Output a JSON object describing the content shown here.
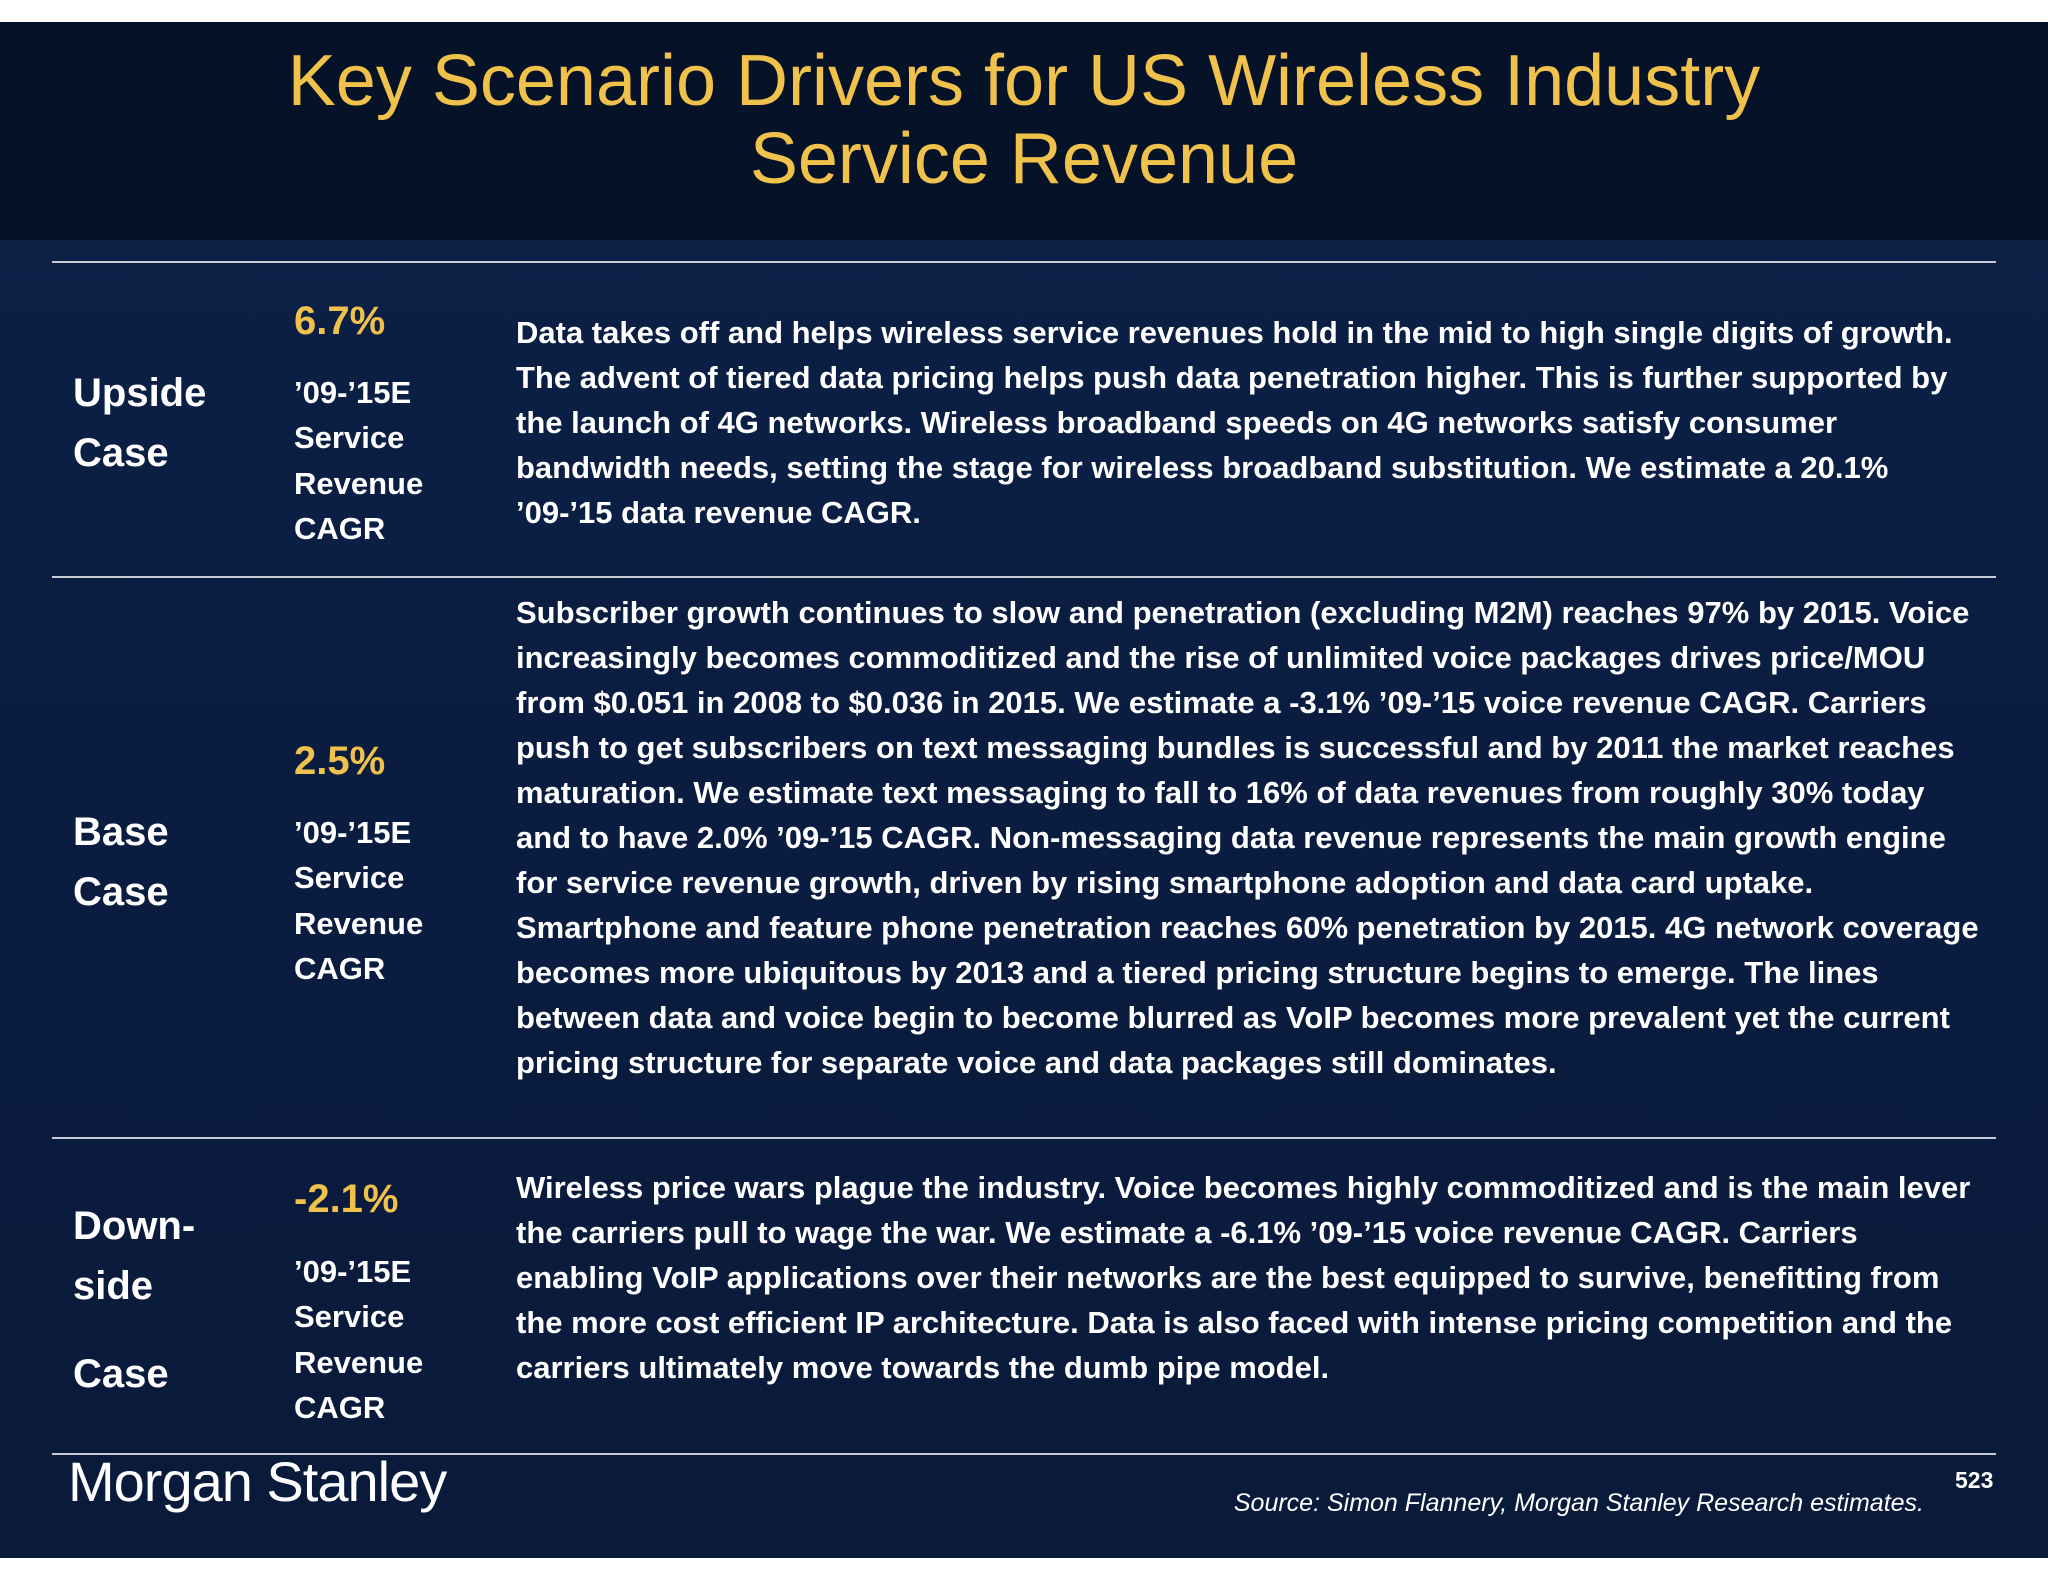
{
  "title": [
    "Key Scenario Drivers for US Wireless Industry",
    "Service Revenue"
  ],
  "rows": [
    {
      "case": [
        "Upside",
        "Case"
      ],
      "cagr": "6.7%",
      "metric": [
        "’09-’15E",
        "Service",
        "Revenue",
        "CAGR"
      ],
      "description": "Data takes off and helps wireless service revenues hold in the mid to high single digits of growth.  The advent of tiered data pricing helps push data penetration higher.  This is further supported by the launch of 4G networks.  Wireless broadband speeds on 4G networks satisfy consumer bandwidth needs, setting the stage for wireless broadband substitution.  We estimate a 20.1% ’09-’15 data revenue CAGR."
    },
    {
      "case": [
        "Base",
        "Case"
      ],
      "cagr": "2.5%",
      "metric": [
        "’09-’15E",
        "Service",
        "Revenue",
        "CAGR"
      ],
      "description": "Subscriber growth continues to slow and penetration (excluding M2M) reaches 97% by 2015.  Voice increasingly becomes commoditized and the rise of unlimited voice packages drives price/MOU from $0.051 in 2008 to $0.036 in 2015.  We estimate a -3.1% ’09-’15 voice revenue CAGR.  Carriers push to get subscribers on text messaging bundles is successful and by 2011 the market reaches maturation.   We estimate text messaging to fall to 16% of data revenues from roughly 30% today and to have 2.0% ’09-’15 CAGR.  Non-messaging data revenue represents the main growth engine for service revenue growth, driven by rising smartphone adoption and data card uptake.  Smartphone and feature phone penetration reaches 60% penetration by 2015.  4G network coverage becomes more ubiquitous by 2013 and a tiered pricing structure begins to emerge.  The lines between data and voice begin to become blurred as VoIP becomes more prevalent yet the current pricing structure for separate voice and data packages still dominates."
    },
    {
      "case": [
        "Down-",
        "side",
        "Case"
      ],
      "cagr": "-2.1%",
      "metric": [
        "’09-’15E",
        "Service",
        "Revenue",
        "CAGR"
      ],
      "description": "Wireless price wars plague the industry.  Voice becomes highly commoditized and is the main lever the carriers pull to wage the war.  We estimate a -6.1% ’09-’15 voice revenue CAGR.  Carriers enabling VoIP applications over their networks are the best equipped to survive, benefitting from the more cost efficient IP architecture.   Data is also faced with intense pricing competition and the carriers ultimately move towards the dumb pipe model."
    }
  ],
  "footer": {
    "logo": "Morgan Stanley",
    "page": "523",
    "source": "Source: Simon Flannery, Morgan Stanley Research estimates."
  }
}
